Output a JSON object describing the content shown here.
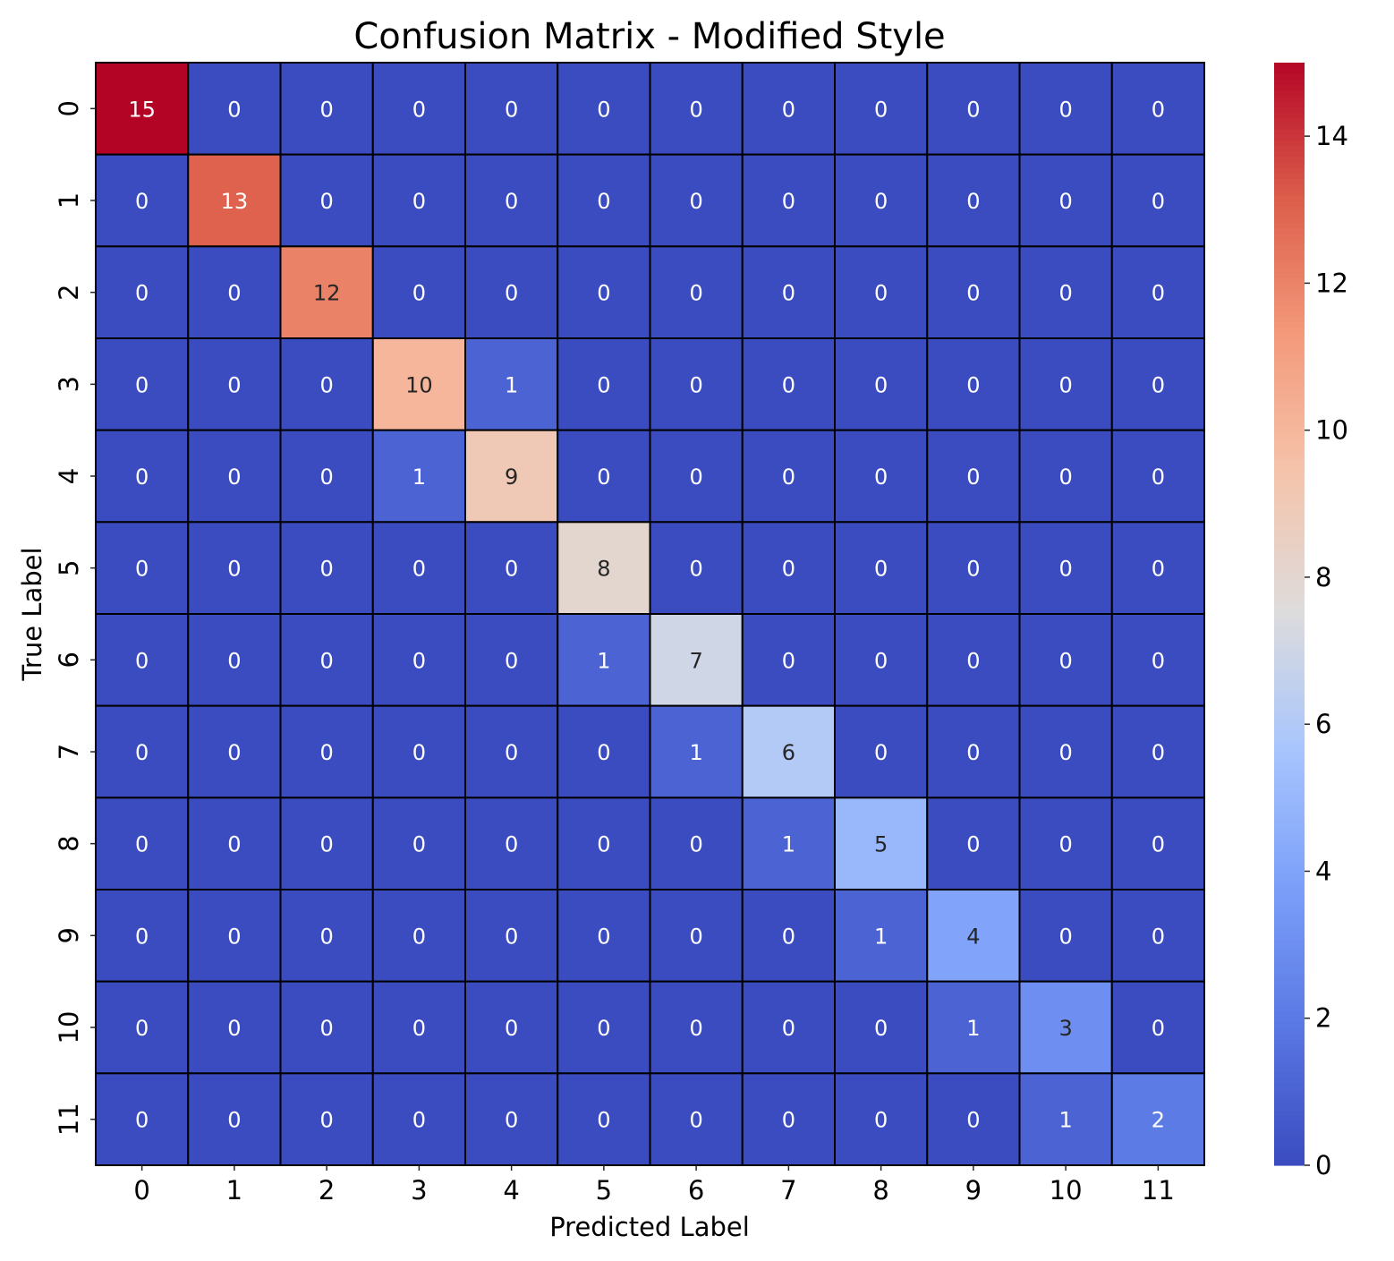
{
  "chart_data": {
    "type": "heatmap",
    "title": "Confusion Matrix - Modified Style",
    "xlabel": "Predicted Label",
    "ylabel": "True Label",
    "x_categories": [
      "0",
      "1",
      "2",
      "3",
      "4",
      "5",
      "6",
      "7",
      "8",
      "9",
      "10",
      "11"
    ],
    "y_categories": [
      "0",
      "1",
      "2",
      "3",
      "4",
      "5",
      "6",
      "7",
      "8",
      "9",
      "10",
      "11"
    ],
    "values": [
      [
        15,
        0,
        0,
        0,
        0,
        0,
        0,
        0,
        0,
        0,
        0,
        0
      ],
      [
        0,
        13,
        0,
        0,
        0,
        0,
        0,
        0,
        0,
        0,
        0,
        0
      ],
      [
        0,
        0,
        12,
        0,
        0,
        0,
        0,
        0,
        0,
        0,
        0,
        0
      ],
      [
        0,
        0,
        0,
        10,
        1,
        0,
        0,
        0,
        0,
        0,
        0,
        0
      ],
      [
        0,
        0,
        0,
        1,
        9,
        0,
        0,
        0,
        0,
        0,
        0,
        0
      ],
      [
        0,
        0,
        0,
        0,
        0,
        8,
        0,
        0,
        0,
        0,
        0,
        0
      ],
      [
        0,
        0,
        0,
        0,
        0,
        1,
        7,
        0,
        0,
        0,
        0,
        0
      ],
      [
        0,
        0,
        0,
        0,
        0,
        0,
        1,
        6,
        0,
        0,
        0,
        0
      ],
      [
        0,
        0,
        0,
        0,
        0,
        0,
        0,
        1,
        5,
        0,
        0,
        0
      ],
      [
        0,
        0,
        0,
        0,
        0,
        0,
        0,
        0,
        1,
        4,
        0,
        0
      ],
      [
        0,
        0,
        0,
        0,
        0,
        0,
        0,
        0,
        0,
        1,
        3,
        0
      ],
      [
        0,
        0,
        0,
        0,
        0,
        0,
        0,
        0,
        0,
        0,
        1,
        2
      ]
    ],
    "colormap": "coolwarm",
    "vmin": 0,
    "vmax": 15,
    "colorbar_ticks": [
      0,
      2,
      4,
      6,
      8,
      10,
      12,
      14
    ],
    "cell_border_color": "#000000",
    "annotations": true
  }
}
